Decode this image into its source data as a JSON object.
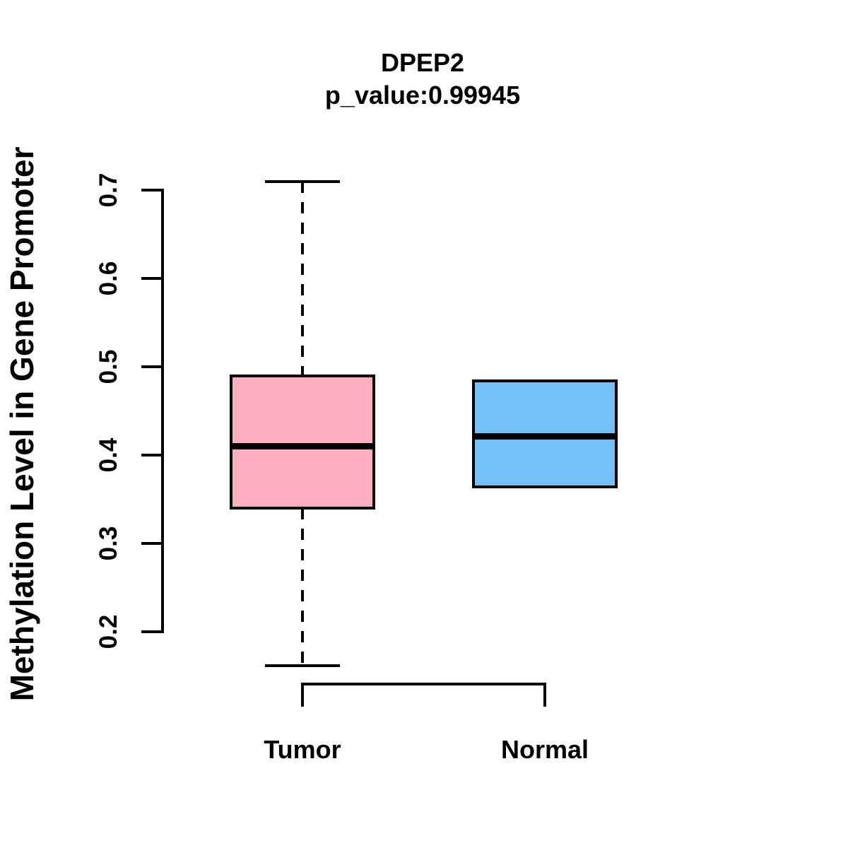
{
  "chart_data": {
    "type": "boxplot",
    "title": "DPEP2",
    "subtitle": "p_value:0.99945",
    "ylabel": "Methylation Level in Gene Promoter",
    "xlabel": "",
    "categories": [
      "Tumor",
      "Normal"
    ],
    "y_ticks": [
      0.2,
      0.3,
      0.4,
      0.5,
      0.6,
      0.7
    ],
    "ylim": [
      0.2,
      0.7
    ],
    "grid": false,
    "legend": null,
    "colors": {
      "tumor_fill": "#FFAEC1",
      "normal_fill": "#74C0F8",
      "line": "#000000"
    },
    "series": [
      {
        "name": "Tumor",
        "fill": "#FFAEC1",
        "min": 0.162,
        "q1": 0.34,
        "median": 0.41,
        "q3": 0.49,
        "max": 0.71
      },
      {
        "name": "Normal",
        "fill": "#74C0F8",
        "min": 0.364,
        "q1": 0.364,
        "median": 0.421,
        "q3": 0.484,
        "max": 0.484
      }
    ]
  }
}
